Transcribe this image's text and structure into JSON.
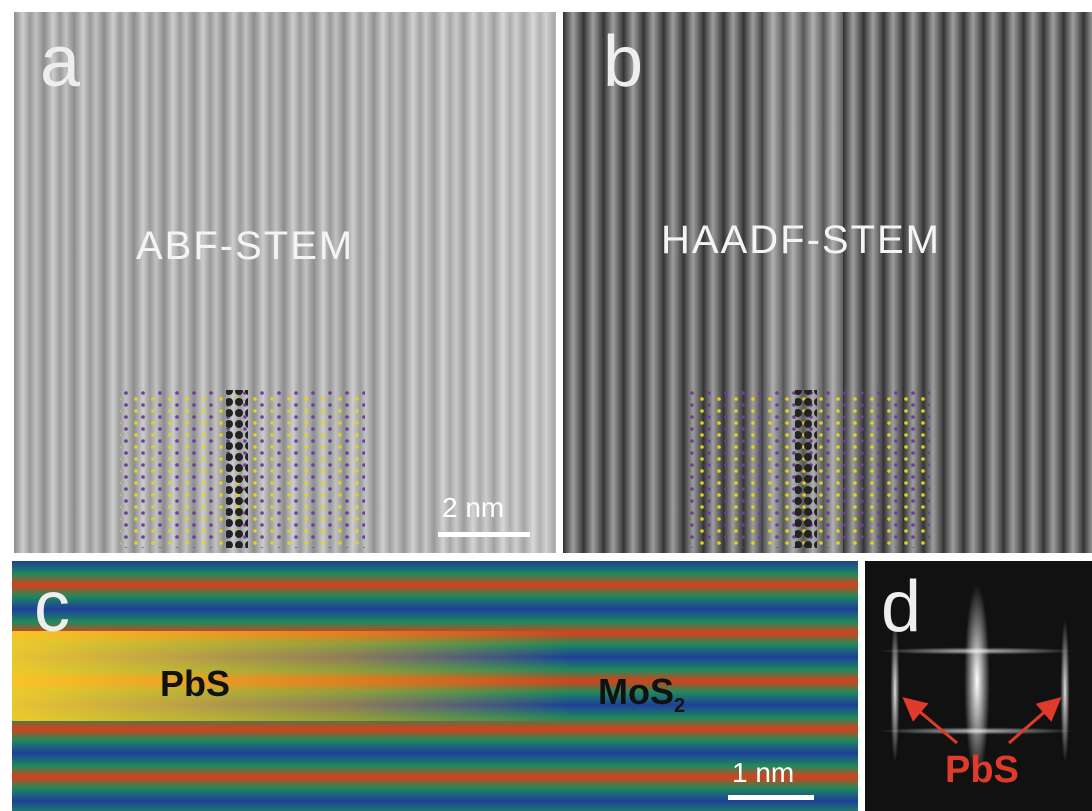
{
  "panels": [
    {
      "label": "a",
      "caption": "ABF-STEM",
      "scale_bar": "2 nm"
    },
    {
      "label": "b",
      "caption": "HAADF-STEM"
    },
    {
      "label": "c",
      "annotations": [
        "PbS",
        {
          "text": "MoS",
          "subscript": "2"
        }
      ],
      "scale_bar": "1 nm"
    },
    {
      "label": "d",
      "annotation": "PbS"
    }
  ]
}
